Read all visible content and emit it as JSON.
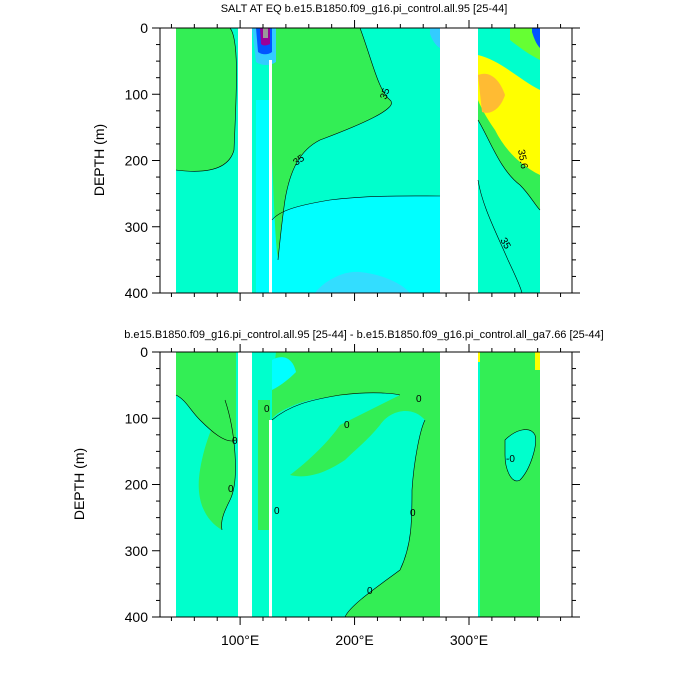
{
  "chart_data": [
    {
      "type": "contour",
      "title": "SALT AT EQ b.e15.B1850.f09_g16.pi_control.all.95 [25-44]",
      "ylabel": "DEPTH (m)",
      "xlabel": "",
      "ylim": [
        0,
        400
      ],
      "y_reversed": true,
      "xlim": [
        30,
        390
      ],
      "yticks": [
        0,
        100,
        200,
        300,
        400
      ],
      "xticks": [
        100,
        200,
        300
      ],
      "contour_labels": [
        "35",
        "35",
        "35.6",
        "35"
      ]
    },
    {
      "type": "contour",
      "title": "b.e15.B1850.f09_g16.pi_control.all.95 [25-44] - b.e15.B1850.f09_g16.pi_control.all_ga7.66 [25-44]",
      "ylabel": "DEPTH (m)",
      "xlabel": "",
      "ylim": [
        0,
        400
      ],
      "y_reversed": true,
      "xlim": [
        30,
        390
      ],
      "yticks": [
        0,
        100,
        200,
        300,
        400
      ],
      "xticks": [
        100,
        200,
        300
      ],
      "xtick_labels": [
        "100°E",
        "200°E",
        "300°E"
      ],
      "contour_labels": [
        "0",
        "0",
        "0",
        "0",
        "0",
        "0",
        "0",
        "0",
        "-0"
      ]
    }
  ],
  "colors": {
    "cyan": "#00ffff",
    "aquamarine": "#00ffcc",
    "green": "#33ee55",
    "lightgreen": "#66ff33",
    "yellow": "#ffff00",
    "orange": "#ffbb33",
    "skyblue": "#33ccff",
    "blue": "#0055ff",
    "navy": "#000099",
    "purple": "#990099",
    "gray": "#999999"
  }
}
